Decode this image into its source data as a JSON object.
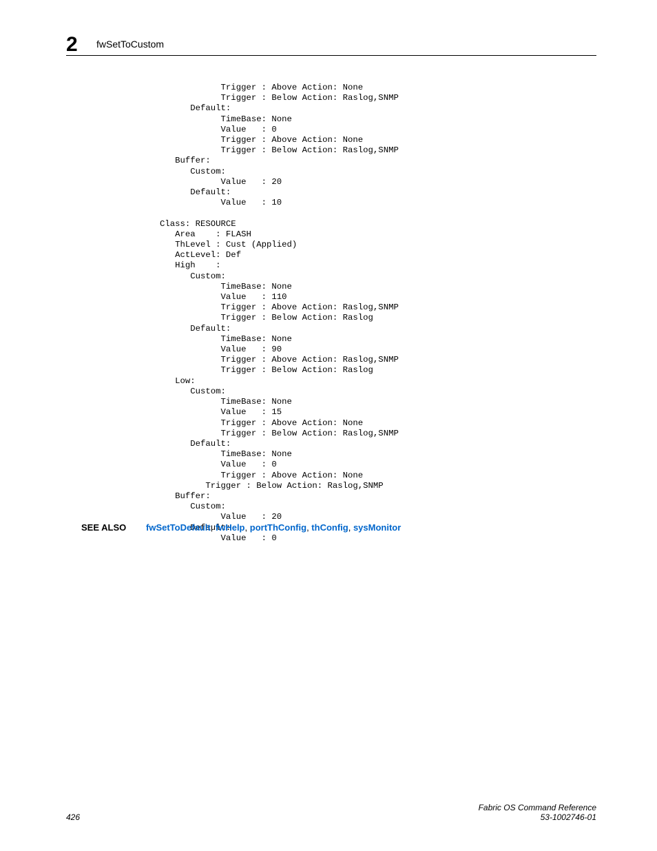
{
  "header": {
    "chapter_num": "2",
    "running_title": "fwSetToCustom"
  },
  "code_block": "            Trigger : Above Action: None\n            Trigger : Below Action: Raslog,SNMP\n      Default:\n            TimeBase: None\n            Value   : 0\n            Trigger : Above Action: None\n            Trigger : Below Action: Raslog,SNMP\n   Buffer:\n      Custom:\n            Value   : 20\n      Default:\n            Value   : 10\n\nClass: RESOURCE\n   Area    : FLASH\n   ThLevel : Cust (Applied)\n   ActLevel: Def\n   High    :\n      Custom:\n            TimeBase: None\n            Value   : 110\n            Trigger : Above Action: Raslog,SNMP\n            Trigger : Below Action: Raslog\n      Default:\n            TimeBase: None\n            Value   : 90\n            Trigger : Above Action: Raslog,SNMP\n            Trigger : Below Action: Raslog\n   Low:\n      Custom:\n            TimeBase: None\n            Value   : 15\n            Trigger : Above Action: None\n            Trigger : Below Action: Raslog,SNMP\n      Default:\n            TimeBase: None\n            Value   : 0\n            Trigger : Above Action: None\n         Trigger : Below Action: Raslog,SNMP\n   Buffer:\n      Custom:\n            Value   : 20\n      Default:\n            Value   : 0",
  "see_also": {
    "label": "SEE ALSO",
    "links": [
      "fwSetToDefault",
      "fwHelp",
      "portThConfig",
      "thConfig",
      "sysMonitor"
    ]
  },
  "footer": {
    "page_num": "426",
    "doc_title": "Fabric OS Command Reference",
    "doc_id": "53-1002746-01"
  }
}
